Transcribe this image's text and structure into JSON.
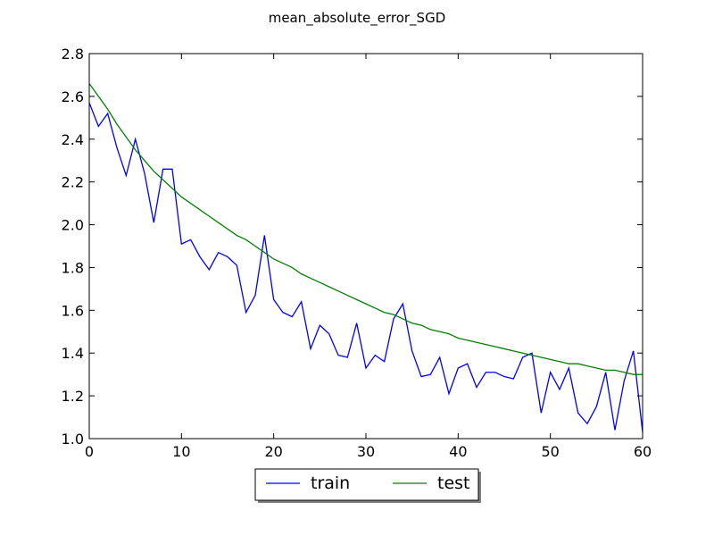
{
  "chart_data": {
    "type": "line",
    "title": "mean_absolute_error_SGD",
    "xlabel": "",
    "ylabel": "",
    "xlim": [
      0,
      60
    ],
    "ylim": [
      1.0,
      2.8
    ],
    "xticks": [
      0,
      10,
      20,
      30,
      40,
      50,
      60
    ],
    "xtick_labels": [
      "0",
      "10",
      "20",
      "30",
      "40",
      "50",
      "60"
    ],
    "yticks": [
      1.0,
      1.2,
      1.4,
      1.6,
      1.8,
      2.0,
      2.2,
      2.4,
      2.6,
      2.8
    ],
    "ytick_labels": [
      "1.0",
      "1.2",
      "1.4",
      "1.6",
      "1.8",
      "2.0",
      "2.2",
      "2.4",
      "2.6",
      "2.8"
    ],
    "grid": false,
    "legend": {
      "placement": "bottom-center-outside",
      "columns": 2
    },
    "x": [
      0,
      1,
      2,
      3,
      4,
      5,
      6,
      7,
      8,
      9,
      10,
      11,
      12,
      13,
      14,
      15,
      16,
      17,
      18,
      19,
      20,
      21,
      22,
      23,
      24,
      25,
      26,
      27,
      28,
      29,
      30,
      31,
      32,
      33,
      34,
      35,
      36,
      37,
      38,
      39,
      40,
      41,
      42,
      43,
      44,
      45,
      46,
      47,
      48,
      49,
      50,
      51,
      52,
      53,
      54,
      55,
      56,
      57,
      58,
      59,
      60
    ],
    "series": [
      {
        "name": "train",
        "color": "#0000ff",
        "values": [
          2.57,
          2.46,
          2.52,
          2.36,
          2.23,
          2.4,
          2.24,
          2.01,
          2.26,
          2.26,
          1.91,
          1.93,
          1.85,
          1.79,
          1.87,
          1.85,
          1.81,
          1.59,
          1.67,
          1.95,
          1.65,
          1.59,
          1.57,
          1.64,
          1.42,
          1.53,
          1.49,
          1.39,
          1.38,
          1.54,
          1.33,
          1.39,
          1.36,
          1.56,
          1.63,
          1.41,
          1.29,
          1.3,
          1.38,
          1.21,
          1.33,
          1.35,
          1.24,
          1.31,
          1.31,
          1.29,
          1.28,
          1.38,
          1.4,
          1.12,
          1.31,
          1.23,
          1.33,
          1.12,
          1.07,
          1.15,
          1.31,
          1.04,
          1.27,
          1.41,
          1.03
        ]
      },
      {
        "name": "test",
        "color": "#008000",
        "values": [
          2.66,
          2.6,
          2.54,
          2.47,
          2.41,
          2.35,
          2.3,
          2.25,
          2.21,
          2.17,
          2.13,
          2.1,
          2.07,
          2.04,
          2.01,
          1.98,
          1.95,
          1.93,
          1.9,
          1.87,
          1.84,
          1.82,
          1.8,
          1.77,
          1.75,
          1.73,
          1.71,
          1.69,
          1.67,
          1.65,
          1.63,
          1.61,
          1.59,
          1.58,
          1.56,
          1.54,
          1.53,
          1.51,
          1.5,
          1.49,
          1.47,
          1.46,
          1.45,
          1.44,
          1.43,
          1.42,
          1.41,
          1.4,
          1.39,
          1.38,
          1.37,
          1.36,
          1.35,
          1.35,
          1.34,
          1.33,
          1.32,
          1.32,
          1.31,
          1.3,
          1.3
        ]
      }
    ]
  }
}
